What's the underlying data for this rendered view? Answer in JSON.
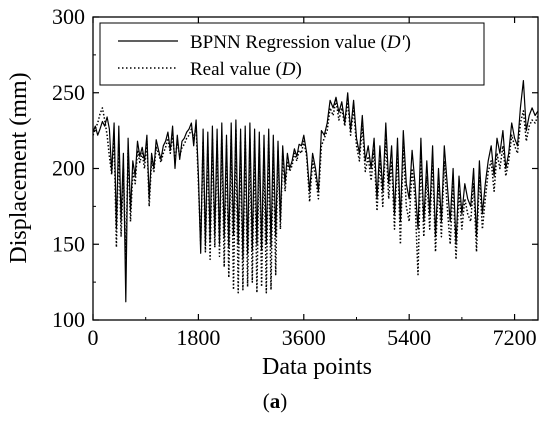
{
  "chart_data": {
    "type": "line",
    "title": "",
    "xlabel": "Data points",
    "ylabel": "Displacement (mm)",
    "xlim": [
      0,
      7600
    ],
    "ylim": [
      100,
      300
    ],
    "xticks": [
      0,
      1800,
      3600,
      5400,
      7200
    ],
    "yticks": [
      100,
      150,
      200,
      250,
      300
    ],
    "grid": false,
    "legend_position": "top-left",
    "caption": {
      "open": "(",
      "letter": "a",
      "close": ")"
    },
    "series": [
      {
        "name": "BPNN Regression value",
        "name_symbol": "D'",
        "style": "solid",
        "color": "#000000",
        "x": [
          0,
          40,
          80,
          120,
          160,
          200,
          240,
          280,
          320,
          360,
          400,
          440,
          480,
          520,
          560,
          600,
          640,
          680,
          720,
          760,
          800,
          840,
          880,
          920,
          960,
          1000,
          1040,
          1080,
          1120,
          1160,
          1200,
          1240,
          1280,
          1320,
          1360,
          1400,
          1440,
          1480,
          1520,
          1560,
          1600,
          1640,
          1680,
          1720,
          1760,
          1800,
          1840,
          1880,
          1920,
          1960,
          2000,
          2040,
          2080,
          2120,
          2160,
          2200,
          2240,
          2280,
          2320,
          2360,
          2400,
          2440,
          2480,
          2520,
          2560,
          2600,
          2640,
          2680,
          2720,
          2760,
          2800,
          2840,
          2880,
          2920,
          2960,
          3000,
          3040,
          3080,
          3120,
          3160,
          3200,
          3240,
          3280,
          3320,
          3360,
          3400,
          3440,
          3480,
          3520,
          3560,
          3600,
          3650,
          3700,
          3750,
          3800,
          3850,
          3900,
          3950,
          4000,
          4050,
          4100,
          4150,
          4200,
          4250,
          4300,
          4350,
          4400,
          4450,
          4500,
          4550,
          4600,
          4650,
          4700,
          4750,
          4800,
          4850,
          4900,
          4950,
          5000,
          5050,
          5100,
          5150,
          5200,
          5250,
          5300,
          5350,
          5400,
          5450,
          5500,
          5550,
          5600,
          5650,
          5700,
          5750,
          5800,
          5850,
          5900,
          5950,
          6000,
          6050,
          6100,
          6150,
          6200,
          6250,
          6300,
          6350,
          6400,
          6450,
          6500,
          6550,
          6600,
          6650,
          6700,
          6750,
          6800,
          6850,
          6900,
          6950,
          7000,
          7050,
          7100,
          7150,
          7200,
          7250,
          7300,
          7350,
          7400,
          7450,
          7500,
          7550,
          7600
        ],
        "y": [
          224,
          228,
          222,
          226,
          231,
          228,
          234,
          226,
          197,
          230,
          160,
          228,
          165,
          210,
          112,
          220,
          172,
          205,
          195,
          218,
          208,
          214,
          205,
          222,
          180,
          210,
          200,
          219,
          212,
          206,
          215,
          218,
          224,
          212,
          228,
          200,
          222,
          206,
          218,
          220,
          224,
          226,
          230,
          215,
          232,
          196,
          144,
          226,
          150,
          224,
          152,
          228,
          156,
          226,
          150,
          230,
          154,
          222,
          148,
          230,
          156,
          232,
          150,
          226,
          140,
          228,
          144,
          230,
          146,
          226,
          150,
          224,
          146,
          222,
          150,
          226,
          148,
          222,
          155,
          218,
          165,
          215,
          190,
          210,
          200,
          205,
          213,
          208,
          216,
          215,
          222,
          210,
          185,
          210,
          200,
          185,
          225,
          222,
          230,
          245,
          240,
          247,
          237,
          244,
          230,
          250,
          225,
          245,
          220,
          210,
          235,
          205,
          215,
          200,
          220,
          180,
          215,
          185,
          230,
          190,
          215,
          170,
          220,
          165,
          225,
          190,
          180,
          212,
          190,
          160,
          220,
          165,
          205,
          170,
          215,
          155,
          200,
          165,
          215,
          190,
          165,
          200,
          150,
          195,
          170,
          190,
          180,
          175,
          200,
          155,
          205,
          170,
          190,
          205,
          215,
          195,
          220,
          210,
          225,
          200,
          210,
          230,
          220,
          215,
          240,
          258,
          225,
          235,
          240,
          235,
          238
        ]
      },
      {
        "name": "Real value",
        "name_symbol": "D",
        "style": "dotted",
        "color": "#000000",
        "x": [
          0,
          40,
          80,
          120,
          160,
          200,
          240,
          280,
          320,
          360,
          400,
          440,
          480,
          520,
          560,
          600,
          640,
          680,
          720,
          760,
          800,
          840,
          880,
          920,
          960,
          1000,
          1040,
          1080,
          1120,
          1160,
          1200,
          1240,
          1280,
          1320,
          1360,
          1400,
          1440,
          1480,
          1520,
          1560,
          1600,
          1640,
          1680,
          1720,
          1760,
          1800,
          1840,
          1880,
          1920,
          1960,
          2000,
          2040,
          2080,
          2120,
          2160,
          2200,
          2240,
          2280,
          2320,
          2360,
          2400,
          2440,
          2480,
          2520,
          2560,
          2600,
          2640,
          2680,
          2720,
          2760,
          2800,
          2840,
          2880,
          2920,
          2960,
          3000,
          3040,
          3080,
          3120,
          3160,
          3200,
          3240,
          3280,
          3320,
          3360,
          3400,
          3440,
          3480,
          3520,
          3560,
          3600,
          3650,
          3700,
          3750,
          3800,
          3850,
          3900,
          3950,
          4000,
          4050,
          4100,
          4150,
          4200,
          4250,
          4300,
          4350,
          4400,
          4450,
          4500,
          4550,
          4600,
          4650,
          4700,
          4750,
          4800,
          4850,
          4900,
          4950,
          5000,
          5050,
          5100,
          5150,
          5200,
          5250,
          5300,
          5350,
          5400,
          5450,
          5500,
          5550,
          5600,
          5650,
          5700,
          5750,
          5800,
          5850,
          5900,
          5950,
          6000,
          6050,
          6100,
          6150,
          6200,
          6250,
          6300,
          6350,
          6400,
          6450,
          6500,
          6550,
          6600,
          6650,
          6700,
          6750,
          6800,
          6850,
          6900,
          6950,
          7000,
          7050,
          7100,
          7150,
          7200,
          7250,
          7300,
          7350,
          7400,
          7450,
          7500,
          7550,
          7600
        ],
        "y": [
          222,
          226,
          230,
          236,
          240,
          232,
          222,
          208,
          196,
          222,
          148,
          218,
          155,
          200,
          140,
          212,
          165,
          198,
          190,
          212,
          204,
          210,
          200,
          218,
          175,
          205,
          198,
          214,
          210,
          204,
          210,
          214,
          220,
          210,
          222,
          205,
          218,
          208,
          214,
          216,
          220,
          222,
          226,
          220,
          228,
          190,
          150,
          218,
          145,
          215,
          140,
          220,
          148,
          218,
          142,
          222,
          135,
          215,
          128,
          222,
          120,
          226,
          118,
          218,
          120,
          222,
          122,
          220,
          125,
          218,
          118,
          216,
          122,
          214,
          118,
          220,
          120,
          215,
          130,
          212,
          160,
          210,
          185,
          205,
          198,
          202,
          210,
          205,
          212,
          210,
          218,
          208,
          178,
          205,
          195,
          180,
          215,
          220,
          225,
          240,
          235,
          245,
          232,
          240,
          228,
          245,
          222,
          240,
          215,
          205,
          228,
          198,
          208,
          192,
          212,
          172,
          205,
          175,
          220,
          180,
          205,
          160,
          212,
          150,
          215,
          175,
          165,
          200,
          180,
          130,
          210,
          155,
          195,
          160,
          205,
          145,
          190,
          155,
          205,
          175,
          150,
          190,
          140,
          185,
          160,
          180,
          170,
          165,
          190,
          145,
          195,
          160,
          180,
          198,
          205,
          185,
          210,
          200,
          215,
          195,
          205,
          222,
          215,
          210,
          230,
          238,
          218,
          228,
          232,
          230,
          235
        ]
      }
    ]
  }
}
